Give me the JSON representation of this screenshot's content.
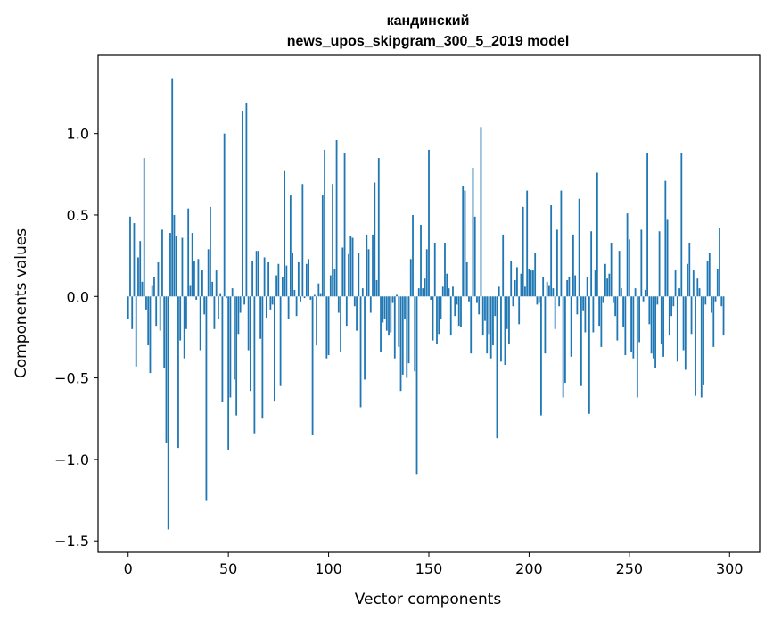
{
  "chart_data": {
    "type": "bar",
    "title": [
      "кандинский",
      "news_upos_skipgram_300_5_2019 model"
    ],
    "xlabel": "Vector components",
    "ylabel": "Components values",
    "xlim": [
      -15,
      315
    ],
    "ylim": [
      -1.57,
      1.48
    ],
    "xticks": [
      0,
      50,
      100,
      150,
      200,
      250,
      300
    ],
    "yticks": [
      -1.5,
      -1.0,
      -0.5,
      0.0,
      0.5,
      1.0
    ],
    "ytick_labels": [
      "−1.5",
      "−1.0",
      "−0.5",
      "0.0",
      "0.5",
      "1.0"
    ],
    "grid": false,
    "bar_color": "#1f77b4",
    "values": [
      -0.14,
      0.49,
      -0.2,
      0.45,
      -0.43,
      0.24,
      0.34,
      0.09,
      0.85,
      -0.08,
      -0.3,
      -0.47,
      0.07,
      0.12,
      -0.18,
      0.21,
      -0.21,
      0.41,
      -0.44,
      -0.9,
      -1.43,
      0.39,
      1.34,
      0.5,
      0.37,
      -0.93,
      -0.27,
      0.36,
      -0.38,
      -0.2,
      0.54,
      0.07,
      0.39,
      0.22,
      -0.02,
      0.23,
      -0.33,
      0.16,
      -0.11,
      -1.25,
      0.29,
      0.55,
      0.09,
      -0.2,
      0.16,
      -0.14,
      0.02,
      -0.65,
      1.0,
      -0.01,
      -0.94,
      -0.62,
      0.05,
      -0.51,
      -0.73,
      -0.23,
      -0.1,
      1.14,
      -0.05,
      1.19,
      -0.33,
      -0.58,
      0.22,
      -0.84,
      0.28,
      0.28,
      -0.26,
      -0.75,
      0.24,
      -0.13,
      0.21,
      -0.08,
      -0.05,
      -0.64,
      0.13,
      0.2,
      -0.55,
      0.12,
      0.77,
      0.19,
      -0.14,
      0.62,
      0.27,
      0.04,
      -0.12,
      0.21,
      -0.03,
      0.69,
      -0.01,
      0.2,
      0.23,
      -0.02,
      -0.85,
      0.01,
      -0.3,
      0.08,
      0.02,
      0.62,
      0.9,
      -0.38,
      -0.36,
      0.13,
      0.69,
      0.17,
      0.96,
      -0.1,
      -0.34,
      0.3,
      0.88,
      -0.18,
      0.26,
      0.37,
      0.36,
      -0.06,
      -0.21,
      0.27,
      -0.68,
      0.05,
      -0.51,
      0.38,
      0.29,
      -0.1,
      0.38,
      0.7,
      0.1,
      0.85,
      -0.34,
      -0.16,
      -0.14,
      -0.21,
      -0.24,
      -0.22,
      -0.04,
      -0.38,
      0.01,
      -0.31,
      -0.58,
      -0.48,
      -0.14,
      -0.5,
      -0.41,
      0.23,
      0.5,
      -0.46,
      -1.09,
      0.05,
      0.44,
      0.05,
      0.11,
      0.29,
      0.9,
      -0.02,
      -0.27,
      0.33,
      -0.29,
      -0.23,
      -0.14,
      0.06,
      0.33,
      0.14,
      0.05,
      -0.24,
      0.06,
      -0.12,
      -0.05,
      -0.18,
      -0.19,
      0.68,
      0.65,
      0.21,
      -0.03,
      -0.35,
      0.79,
      0.49,
      -0.04,
      -0.11,
      1.04,
      -0.24,
      -0.15,
      -0.35,
      -0.23,
      -0.38,
      -0.3,
      -0.12,
      -0.87,
      0.06,
      -0.4,
      0.38,
      -0.42,
      -0.2,
      -0.29,
      0.22,
      -0.06,
      0.1,
      0.18,
      -0.17,
      0.14,
      0.55,
      0.06,
      0.65,
      0.17,
      0.16,
      0.16,
      0.27,
      -0.05,
      -0.04,
      -0.73,
      0.12,
      -0.35,
      0.09,
      0.07,
      0.56,
      0.05,
      -0.2,
      0.41,
      -0.06,
      0.65,
      -0.62,
      -0.53,
      0.1,
      0.12,
      -0.37,
      0.38,
      0.13,
      -0.11,
      0.6,
      -0.55,
      -0.09,
      -0.22,
      0.12,
      -0.72,
      0.4,
      -0.22,
      0.16,
      0.76,
      -0.18,
      -0.31,
      -0.04,
      0.2,
      0.11,
      0.14,
      0.33,
      -0.04,
      -0.12,
      -0.27,
      0.28,
      0.05,
      -0.19,
      -0.36,
      0.51,
      0.35,
      -0.34,
      -0.38,
      0.05,
      -0.62,
      -0.28,
      0.41,
      -0.03,
      0.04,
      0.88,
      -0.17,
      -0.35,
      -0.38,
      -0.44,
      -0.05,
      0.4,
      -0.29,
      -0.37,
      0.71,
      0.47,
      -0.24,
      -0.12,
      -0.06,
      0.16,
      -0.4,
      0.05,
      0.88,
      -0.33,
      -0.45,
      0.2,
      0.33,
      -0.23,
      0.16,
      -0.61,
      0.11,
      0.05,
      -0.62,
      -0.54,
      -0.05,
      0.22,
      0.27,
      -0.1,
      -0.31,
      -0.03,
      0.17,
      0.42,
      -0.06,
      -0.24
    ]
  }
}
